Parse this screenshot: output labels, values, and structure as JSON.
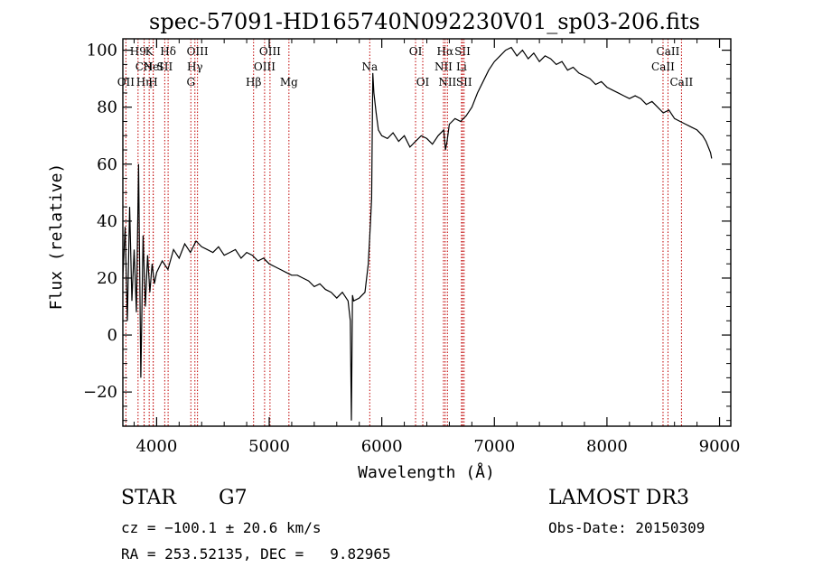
{
  "chart_data": {
    "type": "line",
    "title": "spec-57091-HD165740N092230V01_sp03-206.fits",
    "xlabel": "Wavelength (Å)",
    "ylabel": "Flux (relative)",
    "xlim": [
      3700,
      9100
    ],
    "ylim": [
      -32,
      104
    ],
    "xticks": [
      4000,
      5000,
      6000,
      7000,
      8000,
      9000
    ],
    "yticks": [
      -20,
      0,
      20,
      40,
      60,
      80,
      100
    ],
    "grid": false,
    "series": [
      {
        "name": "flux",
        "x": [
          3700,
          3720,
          3740,
          3760,
          3780,
          3800,
          3820,
          3840,
          3860,
          3880,
          3900,
          3920,
          3940,
          3960,
          3980,
          4000,
          4050,
          4100,
          4150,
          4200,
          4250,
          4300,
          4350,
          4400,
          4450,
          4500,
          4550,
          4600,
          4650,
          4700,
          4750,
          4800,
          4850,
          4900,
          4950,
          5000,
          5050,
          5100,
          5150,
          5200,
          5250,
          5300,
          5350,
          5400,
          5450,
          5500,
          5550,
          5600,
          5650,
          5700,
          5720,
          5730,
          5740,
          5750,
          5800,
          5850,
          5880,
          5900,
          5910,
          5920,
          5930,
          5950,
          5970,
          6000,
          6050,
          6100,
          6150,
          6200,
          6250,
          6300,
          6350,
          6400,
          6450,
          6500,
          6550,
          6565,
          6580,
          6600,
          6650,
          6700,
          6750,
          6800,
          6850,
          6900,
          6950,
          7000,
          7050,
          7100,
          7150,
          7200,
          7250,
          7300,
          7350,
          7400,
          7450,
          7500,
          7550,
          7600,
          7650,
          7700,
          7750,
          7800,
          7850,
          7900,
          7950,
          8000,
          8050,
          8100,
          8150,
          8200,
          8250,
          8300,
          8350,
          8400,
          8450,
          8500,
          8550,
          8600,
          8650,
          8700,
          8750,
          8800,
          8850,
          8880,
          8900,
          8920,
          8930
        ],
        "values": [
          20,
          38,
          5,
          45,
          12,
          30,
          8,
          60,
          -15,
          35,
          10,
          28,
          15,
          25,
          18,
          22,
          26,
          23,
          30,
          27,
          32,
          29,
          33,
          31,
          30,
          29,
          31,
          28,
          29,
          30,
          27,
          29,
          28,
          26,
          27,
          25,
          24,
          23,
          22,
          21,
          21,
          20,
          19,
          17,
          18,
          16,
          15,
          13,
          15,
          12,
          5,
          -30,
          14,
          12,
          13,
          15,
          25,
          40,
          48,
          92,
          85,
          78,
          72,
          70,
          69,
          71,
          68,
          70,
          66,
          68,
          70,
          69,
          67,
          70,
          72,
          65,
          68,
          74,
          76,
          75,
          77,
          80,
          85,
          89,
          93,
          96,
          98,
          100,
          101,
          98,
          100,
          97,
          99,
          96,
          98,
          97,
          95,
          96,
          93,
          94,
          92,
          91,
          90,
          88,
          89,
          87,
          86,
          85,
          84,
          83,
          84,
          83,
          81,
          82,
          80,
          78,
          79,
          76,
          75,
          74,
          73,
          72,
          70,
          68,
          66,
          64,
          62
        ]
      }
    ],
    "spectral_lines": [
      {
        "name": "OII",
        "wavelength": 3727,
        "row": 3
      },
      {
        "name": "H9",
        "wavelength": 3835,
        "row": 1
      },
      {
        "name": "CN",
        "wavelength": 3889,
        "row": 2
      },
      {
        "name": "Hη",
        "wavelength": 3889,
        "row": 3
      },
      {
        "name": "K",
        "wavelength": 3934,
        "row": 1
      },
      {
        "name": "HeI",
        "wavelength": 3970,
        "row": 2
      },
      {
        "name": "H",
        "wavelength": 3969,
        "row": 3
      },
      {
        "name": "Hδ",
        "wavelength": 4102,
        "row": 1
      },
      {
        "name": "SII",
        "wavelength": 4072,
        "row": 2
      },
      {
        "name": "OIII",
        "wavelength": 4363,
        "row": 1
      },
      {
        "name": "Hγ",
        "wavelength": 4340,
        "row": 2
      },
      {
        "name": "G",
        "wavelength": 4304,
        "row": 3
      },
      {
        "name": "Hβ",
        "wavelength": 4861,
        "row": 3
      },
      {
        "name": "OIII",
        "wavelength": 5007,
        "row": 1
      },
      {
        "name": "OIII",
        "wavelength": 4959,
        "row": 2
      },
      {
        "name": "Mg",
        "wavelength": 5175,
        "row": 3
      },
      {
        "name": "Na",
        "wavelength": 5893,
        "row": 2
      },
      {
        "name": "OI",
        "wavelength": 6300,
        "row": 1
      },
      {
        "name": "OI",
        "wavelength": 6364,
        "row": 3
      },
      {
        "name": "Hα",
        "wavelength": 6563,
        "row": 1
      },
      {
        "name": "NII",
        "wavelength": 6548,
        "row": 2
      },
      {
        "name": "NII",
        "wavelength": 6583,
        "row": 3
      },
      {
        "name": "SII",
        "wavelength": 6717,
        "row": 1
      },
      {
        "name": "Li",
        "wavelength": 6708,
        "row": 2
      },
      {
        "name": "SII",
        "wavelength": 6731,
        "row": 3
      },
      {
        "name": "CaII",
        "wavelength": 8542,
        "row": 1
      },
      {
        "name": "CaII",
        "wavelength": 8498,
        "row": 2
      },
      {
        "name": "CaII",
        "wavelength": 8662,
        "row": 3
      }
    ]
  },
  "info": {
    "class_label": "STAR",
    "subclass": "G7",
    "survey": "LAMOST DR3",
    "cz_line": "cz = −100.1 ± 20.6 km/s",
    "obs_date_line": "Obs-Date: 20150309",
    "coords_line": "RA = 253.52135, DEC =   9.82965"
  }
}
